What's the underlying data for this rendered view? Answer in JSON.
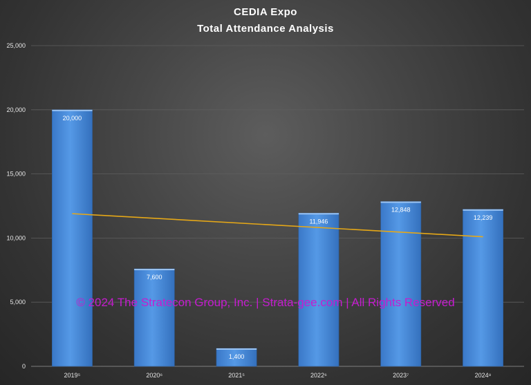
{
  "chart_data": {
    "type": "bar",
    "title": "CEDIA  Expo",
    "subtitle": "Total  Attendance  Analysis",
    "categories": [
      "2019⁵",
      "2020⁶",
      "2021⁵",
      "2022⁶",
      "2023⁷",
      "2024⁸"
    ],
    "values": [
      20000,
      7600,
      1400,
      11946,
      12848,
      12239
    ],
    "data_labels": [
      "20,000",
      "7,600",
      "1,400",
      "11,946",
      "12,848",
      "12,239"
    ],
    "y_ticks": [
      0,
      5000,
      10000,
      15000,
      20000,
      25000
    ],
    "y_tick_labels": [
      "0",
      "5,000",
      "10,000",
      "15,000",
      "20,000",
      "25,000"
    ],
    "ylim": [
      0,
      25000
    ],
    "trendline": {
      "type": "linear",
      "start": 11900,
      "end": 10100,
      "color": "#e6a817"
    },
    "bar_color": "#4a8ad8",
    "grid": true,
    "xlabel": "",
    "ylabel": ""
  },
  "watermark": "© 2024 The Stratecon Group, Inc. | Strata-gee.com | All Rights Reserved"
}
